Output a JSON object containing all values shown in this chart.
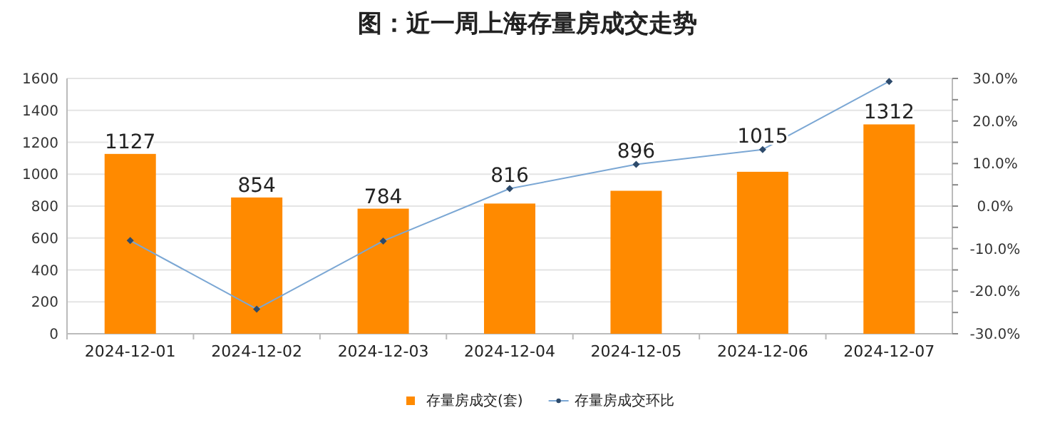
{
  "chart_data": {
    "type": "bar",
    "title": "图：近一周上海存量房成交走势",
    "categories": [
      "2024-12-01",
      "2024-12-02",
      "2024-12-03",
      "2024-12-04",
      "2024-12-05",
      "2024-12-06",
      "2024-12-07"
    ],
    "series": [
      {
        "name": "存量房成交(套)",
        "color": "#ff8a00",
        "values": [
          1127,
          854,
          784,
          816,
          896,
          1015,
          1312
        ],
        "value_labels": [
          "1127",
          "854",
          "784",
          "816",
          "896",
          "1015",
          "1312"
        ]
      },
      {
        "name": "存量房成交环比",
        "type": "line",
        "axis": "y2",
        "color": "#7ba7d4",
        "marker": "diamond",
        "values": [
          -8.1,
          -24.2,
          -8.2,
          4.1,
          9.8,
          13.3,
          29.3
        ]
      }
    ],
    "ylim": [
      0,
      1600
    ],
    "yticks": [
      0,
      200,
      400,
      600,
      800,
      1000,
      1200,
      1400,
      1600
    ],
    "y2lim": [
      -30,
      30
    ],
    "y2ticks": [
      {
        "value": -30,
        "label": "-30.0%"
      },
      {
        "value": -25,
        "label": null
      },
      {
        "value": -20,
        "label": "-20.0%"
      },
      {
        "value": -15,
        "label": null
      },
      {
        "value": -10,
        "label": "-10.0%"
      },
      {
        "value": -5,
        "label": null
      },
      {
        "value": 0,
        "label": "0.0%"
      },
      {
        "value": 5,
        "label": null
      },
      {
        "value": 10,
        "label": "10.0%"
      },
      {
        "value": 15,
        "label": null
      },
      {
        "value": 20,
        "label": "20.0%"
      },
      {
        "value": 25,
        "label": null
      },
      {
        "value": 30,
        "label": "30.0%"
      }
    ],
    "grid": "y",
    "legend": "bottom"
  }
}
